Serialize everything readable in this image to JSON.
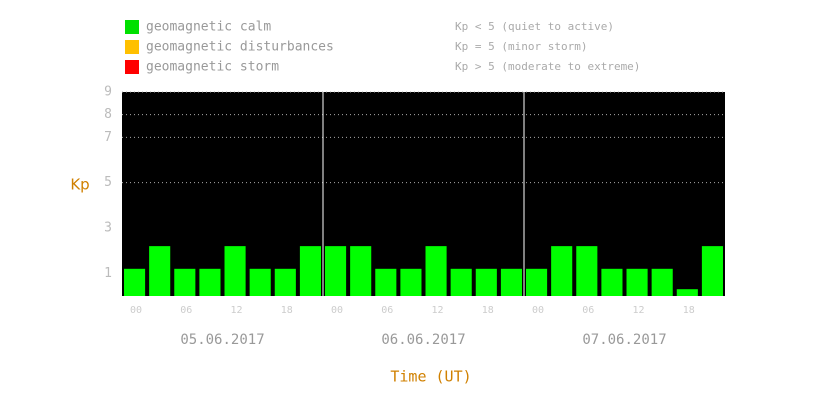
{
  "chart_data": {
    "type": "bar",
    "y_label": "Kp",
    "x_label": "Time (UT)",
    "legend": [
      {
        "name": "geomagnetic calm",
        "color": "#00e000",
        "note": "Kp < 5 (quiet to active)"
      },
      {
        "name": "geomagnetic disturbances",
        "color": "#ffc000",
        "note": "Kp = 5 (minor storm)"
      },
      {
        "name": "geomagnetic storm",
        "color": "#ff0000",
        "note": "Kp > 5 (moderate to extreme)"
      }
    ],
    "categories": [
      null,
      null,
      null,
      null,
      null,
      null,
      null,
      null,
      null,
      null,
      null,
      null,
      null,
      null,
      null,
      null,
      null,
      null,
      null,
      null,
      null,
      null,
      null,
      null
    ],
    "values": [
      1.2,
      2.2,
      1.2,
      1.2,
      2.2,
      1.2,
      1.2,
      2.2,
      2.2,
      2.2,
      1.2,
      1.2,
      2.2,
      1.2,
      1.2,
      1.2,
      1.2,
      2.2,
      2.2,
      1.2,
      1.2,
      1.2,
      0.3,
      2.2
    ],
    "color": "#00ff00",
    "days": [
      "05.06.2017",
      "06.06.2017",
      "07.06.2017"
    ],
    "time_labels": [
      "00",
      "06",
      "12",
      "18"
    ],
    "ylim": [
      0,
      9
    ],
    "yticks": [
      1,
      3,
      5,
      7,
      8,
      9
    ],
    "grid_from": 5
  }
}
